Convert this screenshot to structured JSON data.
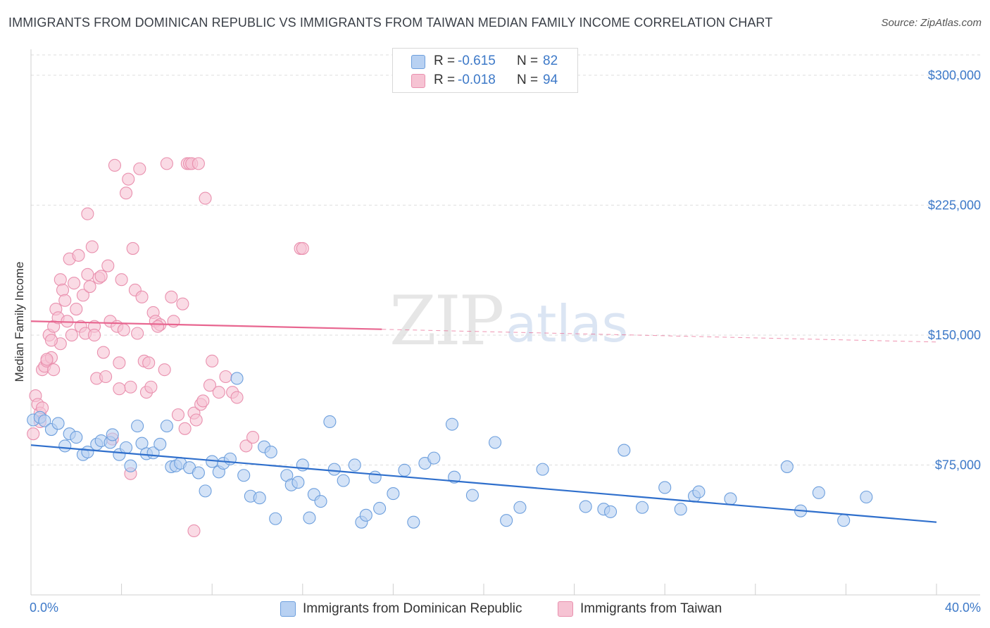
{
  "title": "IMMIGRANTS FROM DOMINICAN REPUBLIC VS IMMIGRANTS FROM TAIWAN MEDIAN FAMILY INCOME CORRELATION CHART",
  "source": "Source: ZipAtlas.com",
  "watermark": {
    "zip": "ZIP",
    "atlas": "atlas"
  },
  "legend": {
    "rows": [
      {
        "r_label": "R =",
        "r_value": "-0.615",
        "n_label": "N =",
        "n_value": "82"
      },
      {
        "r_label": "R =",
        "r_value": "-0.018",
        "n_label": "N =",
        "n_value": "94"
      }
    ]
  },
  "bottom_legend": {
    "series1": "Immigrants from Dominican Republic",
    "series2": "Immigrants from Taiwan"
  },
  "colors": {
    "blue_fill": "#b8d1f2",
    "blue_stroke": "#6d9fdd",
    "blue_line": "#2f6fcc",
    "pink_fill": "#f6c3d3",
    "pink_stroke": "#e990ae",
    "pink_line": "#e86690",
    "axis_text": "#3d79c8",
    "grid": "#dedede"
  },
  "chart_data": {
    "type": "scatter",
    "title": "IMMIGRANTS FROM DOMINICAN REPUBLIC VS IMMIGRANTS FROM TAIWAN MEDIAN FAMILY INCOME CORRELATION CHART",
    "xlabel": "",
    "ylabel": "Median Family Income",
    "xlim": [
      0,
      40
    ],
    "ylim": [
      0,
      315000
    ],
    "x_tick_labels": [
      {
        "value": 0,
        "label": "0.0%"
      },
      {
        "value": 40,
        "label": "40.0%"
      }
    ],
    "y_ticks": [
      {
        "value": 75000,
        "label": "$75,000"
      },
      {
        "value": 150000,
        "label": "$150,000"
      },
      {
        "value": 225000,
        "label": "$225,000"
      },
      {
        "value": 300000,
        "label": "$300,000"
      }
    ],
    "series": [
      {
        "name": "Immigrants from Dominican Republic",
        "r": -0.615,
        "n": 82,
        "trend": {
          "x": [
            0,
            40
          ],
          "y": [
            86500,
            42000
          ],
          "dashed_from": null
        },
        "points": [
          [
            0.1,
            101000
          ],
          [
            0.4,
            102500
          ],
          [
            0.6,
            100500
          ],
          [
            0.9,
            95500
          ],
          [
            1.2,
            99000
          ],
          [
            1.5,
            86000
          ],
          [
            1.7,
            93000
          ],
          [
            2.0,
            91000
          ],
          [
            2.3,
            81000
          ],
          [
            2.5,
            82500
          ],
          [
            2.9,
            87000
          ],
          [
            3.1,
            89000
          ],
          [
            3.5,
            88000
          ],
          [
            3.6,
            92500
          ],
          [
            3.9,
            81000
          ],
          [
            4.2,
            85000
          ],
          [
            4.4,
            74500
          ],
          [
            4.7,
            97500
          ],
          [
            4.9,
            87500
          ],
          [
            5.1,
            81500
          ],
          [
            5.4,
            82000
          ],
          [
            5.7,
            87000
          ],
          [
            6.0,
            97500
          ],
          [
            6.2,
            74000
          ],
          [
            6.4,
            74500
          ],
          [
            6.6,
            76000
          ],
          [
            7.0,
            73500
          ],
          [
            7.4,
            70500
          ],
          [
            7.7,
            60000
          ],
          [
            8.0,
            77000
          ],
          [
            8.3,
            71000
          ],
          [
            8.5,
            76000
          ],
          [
            8.8,
            78500
          ],
          [
            9.1,
            125000
          ],
          [
            9.4,
            69000
          ],
          [
            9.7,
            57000
          ],
          [
            10.1,
            56000
          ],
          [
            10.3,
            85500
          ],
          [
            10.6,
            82500
          ],
          [
            10.8,
            44000
          ],
          [
            11.3,
            69000
          ],
          [
            11.5,
            63500
          ],
          [
            11.8,
            65000
          ],
          [
            12.0,
            75000
          ],
          [
            12.3,
            44500
          ],
          [
            12.5,
            58000
          ],
          [
            12.8,
            54000
          ],
          [
            13.2,
            100000
          ],
          [
            13.4,
            72500
          ],
          [
            13.8,
            66000
          ],
          [
            14.3,
            75000
          ],
          [
            14.6,
            42000
          ],
          [
            14.8,
            46000
          ],
          [
            15.2,
            68000
          ],
          [
            15.4,
            50000
          ],
          [
            16.0,
            58500
          ],
          [
            16.5,
            72000
          ],
          [
            16.9,
            42000
          ],
          [
            17.4,
            76000
          ],
          [
            17.8,
            79000
          ],
          [
            18.7,
            68000
          ],
          [
            18.6,
            98500
          ],
          [
            19.5,
            57500
          ],
          [
            20.5,
            88000
          ],
          [
            21.0,
            43000
          ],
          [
            21.6,
            50500
          ],
          [
            22.6,
            72500
          ],
          [
            24.5,
            51000
          ],
          [
            25.3,
            49500
          ],
          [
            25.6,
            48000
          ],
          [
            26.2,
            83500
          ],
          [
            27.0,
            50500
          ],
          [
            28.0,
            62000
          ],
          [
            28.7,
            49500
          ],
          [
            29.3,
            57000
          ],
          [
            29.5,
            59500
          ],
          [
            30.9,
            55500
          ],
          [
            33.4,
            74000
          ],
          [
            34.0,
            48500
          ],
          [
            34.8,
            59000
          ],
          [
            35.9,
            43000
          ],
          [
            36.9,
            56500
          ]
        ]
      },
      {
        "name": "Immigrants from Taiwan",
        "r": -0.018,
        "n": 94,
        "trend": {
          "x": [
            0,
            40
          ],
          "y": [
            158000,
            146000
          ],
          "dashed_from": 15.5
        },
        "points": [
          [
            0.1,
            93000
          ],
          [
            0.2,
            115000
          ],
          [
            0.3,
            110000
          ],
          [
            0.4,
            105000
          ],
          [
            0.4,
            100000
          ],
          [
            0.5,
            130000
          ],
          [
            0.6,
            132000
          ],
          [
            0.7,
            135000
          ],
          [
            0.8,
            150000
          ],
          [
            0.9,
            137000
          ],
          [
            1.0,
            155000
          ],
          [
            1.1,
            165000
          ],
          [
            1.2,
            160000
          ],
          [
            1.3,
            182000
          ],
          [
            1.4,
            176000
          ],
          [
            1.5,
            170000
          ],
          [
            1.6,
            158000
          ],
          [
            1.7,
            194000
          ],
          [
            1.8,
            150000
          ],
          [
            1.9,
            180000
          ],
          [
            2.0,
            165000
          ],
          [
            2.1,
            196000
          ],
          [
            2.2,
            155000
          ],
          [
            2.3,
            173000
          ],
          [
            2.4,
            151000
          ],
          [
            2.5,
            220000
          ],
          [
            2.6,
            178000
          ],
          [
            2.7,
            201000
          ],
          [
            2.8,
            155000
          ],
          [
            2.9,
            125000
          ],
          [
            3.0,
            183000
          ],
          [
            3.1,
            184000
          ],
          [
            3.2,
            140000
          ],
          [
            3.3,
            126000
          ],
          [
            3.4,
            190000
          ],
          [
            3.5,
            158000
          ],
          [
            3.6,
            90000
          ],
          [
            3.7,
            248000
          ],
          [
            3.8,
            155000
          ],
          [
            3.9,
            134000
          ],
          [
            4.0,
            182000
          ],
          [
            4.1,
            153000
          ],
          [
            4.2,
            232000
          ],
          [
            4.3,
            240000
          ],
          [
            4.4,
            120000
          ],
          [
            4.5,
            200000
          ],
          [
            4.6,
            176000
          ],
          [
            4.7,
            151000
          ],
          [
            4.8,
            246000
          ],
          [
            4.9,
            172000
          ],
          [
            5.0,
            135000
          ],
          [
            5.1,
            117000
          ],
          [
            5.2,
            134000
          ],
          [
            5.3,
            120000
          ],
          [
            5.4,
            163000
          ],
          [
            5.5,
            158000
          ],
          [
            5.7,
            156000
          ],
          [
            5.9,
            130000
          ],
          [
            6.0,
            249000
          ],
          [
            6.2,
            172000
          ],
          [
            6.5,
            104000
          ],
          [
            6.7,
            168000
          ],
          [
            6.8,
            96000
          ],
          [
            6.9,
            249000
          ],
          [
            7.0,
            249000
          ],
          [
            7.1,
            249000
          ],
          [
            7.2,
            105000
          ],
          [
            7.3,
            101000
          ],
          [
            7.4,
            249000
          ],
          [
            7.5,
            110000
          ],
          [
            7.6,
            112000
          ],
          [
            7.7,
            229000
          ],
          [
            7.9,
            121000
          ],
          [
            8.0,
            135000
          ],
          [
            8.3,
            117000
          ],
          [
            8.6,
            126000
          ],
          [
            8.9,
            117000
          ],
          [
            9.1,
            114000
          ],
          [
            9.5,
            86000
          ],
          [
            9.8,
            91000
          ],
          [
            11.9,
            200000
          ],
          [
            12.0,
            200000
          ],
          [
            4.4,
            70000
          ],
          [
            7.2,
            37000
          ],
          [
            2.5,
            185000
          ],
          [
            1.3,
            145000
          ],
          [
            3.9,
            119000
          ],
          [
            2.8,
            150000
          ],
          [
            0.9,
            147000
          ],
          [
            1.0,
            130000
          ],
          [
            5.6,
            155000
          ],
          [
            6.3,
            158000
          ],
          [
            0.7,
            136000
          ],
          [
            0.5,
            108000
          ]
        ]
      }
    ]
  }
}
